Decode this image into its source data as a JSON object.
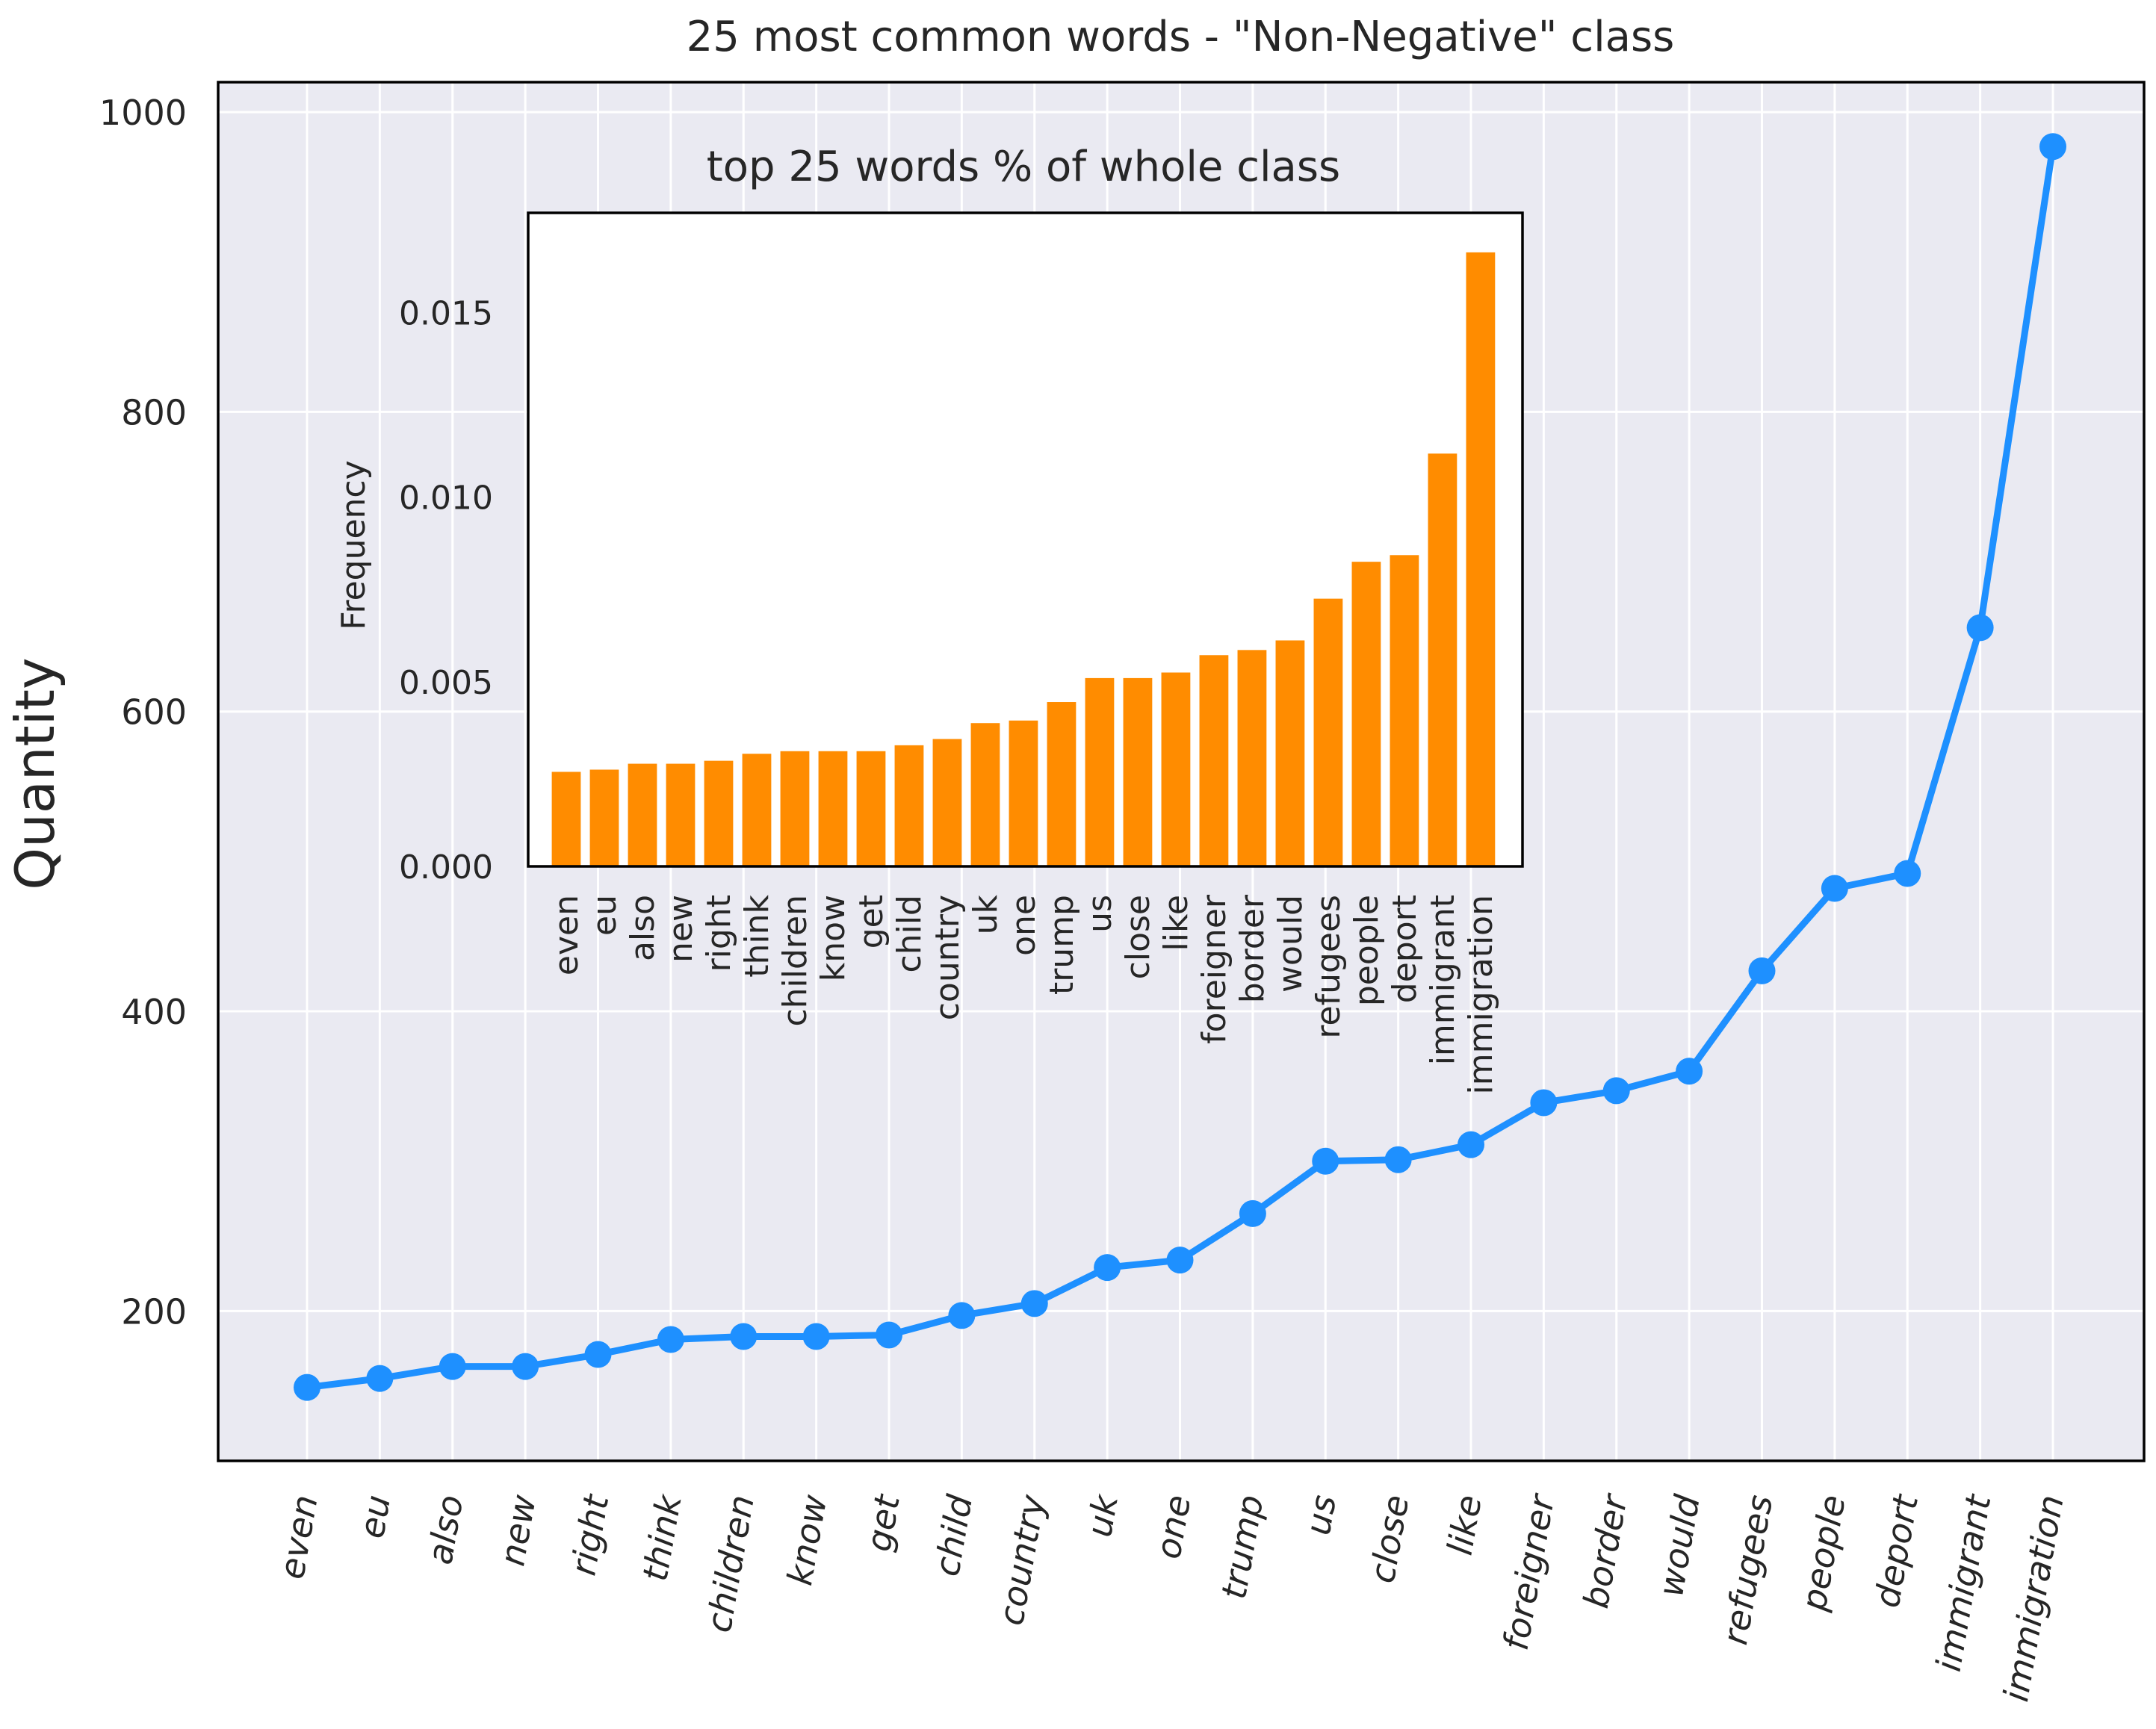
{
  "chart_data": [
    {
      "type": "line",
      "title": "25 most common words - \"Non-Negative\" class",
      "xlabel": "",
      "ylabel": "Quantity",
      "ylim": [
        100,
        1020
      ],
      "yticks": [
        200,
        400,
        600,
        800,
        1000
      ],
      "grid": true,
      "categories": [
        "even",
        "eu",
        "also",
        "new",
        "right",
        "think",
        "children",
        "know",
        "get",
        "child",
        "country",
        "uk",
        "one",
        "trump",
        "us",
        "close",
        "like",
        "foreigner",
        "border",
        "would",
        "refugees",
        "people",
        "deport",
        "immigrant",
        "immigration"
      ],
      "series": [
        {
          "name": "Quantity",
          "color": "#1e90ff",
          "values": [
            149,
            155,
            163,
            163,
            171,
            181,
            183,
            183,
            184,
            197,
            205,
            229,
            234,
            265,
            300,
            301,
            311,
            339,
            347,
            360,
            427,
            482,
            492,
            656,
            977
          ]
        }
      ]
    },
    {
      "type": "bar",
      "title": "top 25 words % of whole class",
      "xlabel": "",
      "ylabel": "Frequency",
      "ylim": [
        0,
        0.0177
      ],
      "yticks": [
        "0.000",
        "0.005",
        "0.010",
        "0.015"
      ],
      "grid": false,
      "categories": [
        "even",
        "eu",
        "also",
        "new",
        "right",
        "think",
        "children",
        "know",
        "get",
        "child",
        "country",
        "uk",
        "one",
        "trump",
        "us",
        "close",
        "like",
        "foreigner",
        "border",
        "would",
        "refugees",
        "people",
        "deport",
        "immigrant",
        "immigration"
      ],
      "series": [
        {
          "name": "Frequency",
          "color": "#ff8c00",
          "values": [
            0.00258,
            0.00264,
            0.0028,
            0.0028,
            0.00288,
            0.00307,
            0.00314,
            0.00314,
            0.00314,
            0.0033,
            0.00347,
            0.0039,
            0.00397,
            0.00447,
            0.00512,
            0.00512,
            0.00527,
            0.00574,
            0.00588,
            0.00614,
            0.00727,
            0.00827,
            0.00845,
            0.0112,
            0.01665
          ]
        }
      ]
    }
  ]
}
